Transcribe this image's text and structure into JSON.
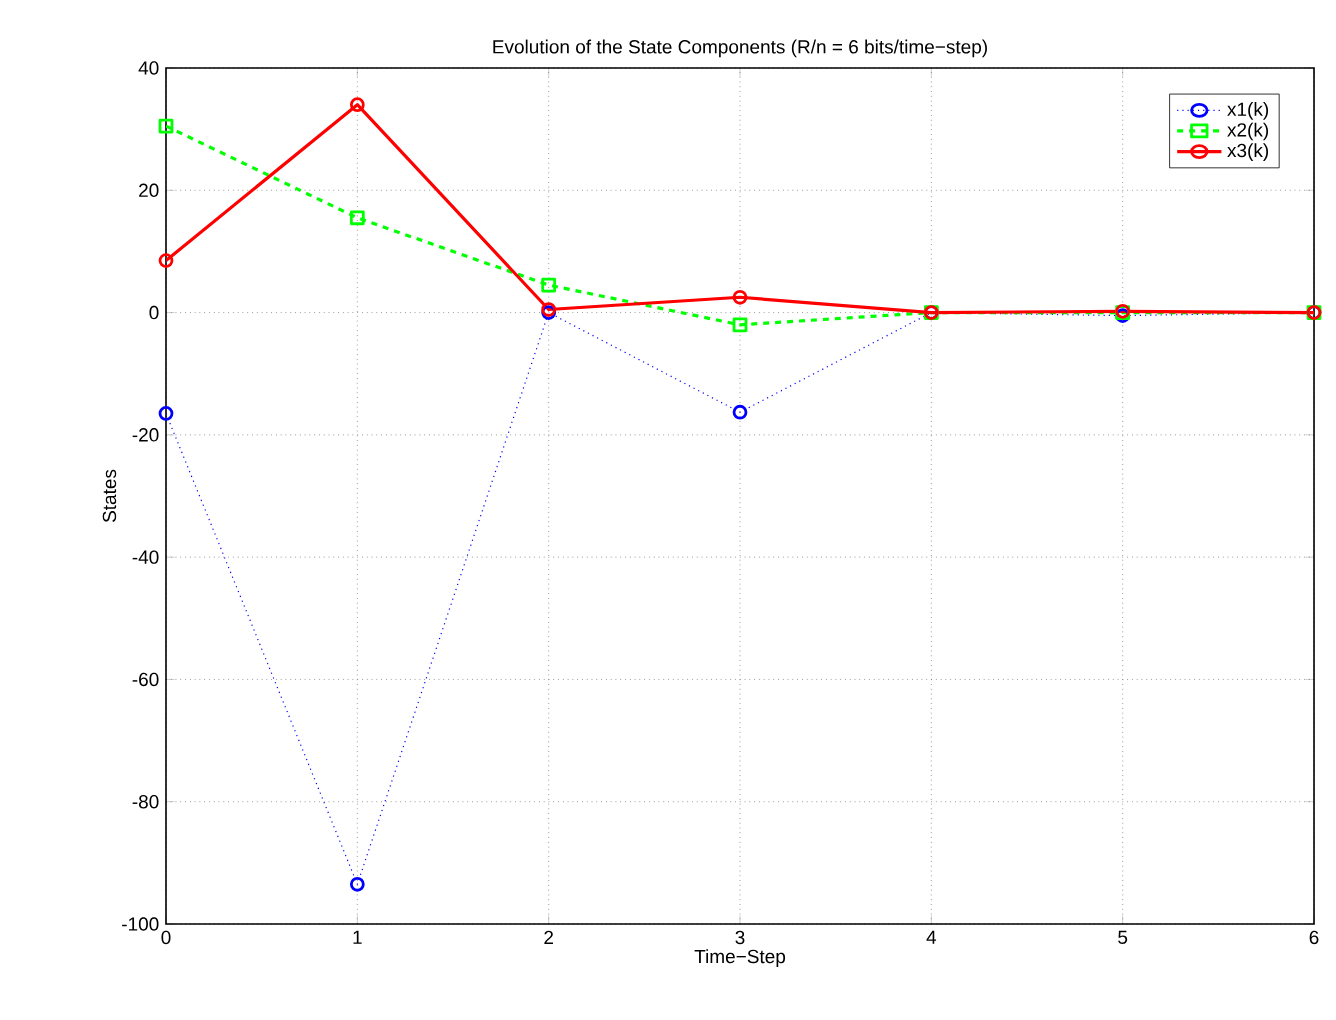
{
  "chart_data": {
    "type": "line",
    "title": "Evolution of the State Components (R/n = 6 bits/time−step)",
    "xlabel": "Time−Step",
    "ylabel": "States",
    "x": [
      0,
      1,
      2,
      3,
      4,
      5,
      6
    ],
    "series": [
      {
        "name": "x1(k)",
        "color": "#0000ff",
        "marker": "circle",
        "line_style": "dotted",
        "values": [
          -16.5,
          -93.5,
          0,
          -16.3,
          0,
          -0.5,
          0
        ]
      },
      {
        "name": "x2(k)",
        "color": "#00ff00",
        "marker": "square",
        "line_style": "dashed",
        "values": [
          30.5,
          15.5,
          4.5,
          -2,
          0,
          0,
          0
        ]
      },
      {
        "name": "x3(k)",
        "color": "#ff0000",
        "marker": "circle",
        "line_style": "solid",
        "values": [
          8.5,
          34,
          0.5,
          2.5,
          0,
          0.2,
          0
        ]
      }
    ],
    "xlim": [
      0,
      6
    ],
    "ylim": [
      -100,
      40
    ],
    "xticks": [
      0,
      1,
      2,
      3,
      4,
      5,
      6
    ],
    "yticks": [
      -100,
      -80,
      -60,
      -40,
      -20,
      0,
      20,
      40
    ],
    "grid": true,
    "legend": "top right"
  }
}
